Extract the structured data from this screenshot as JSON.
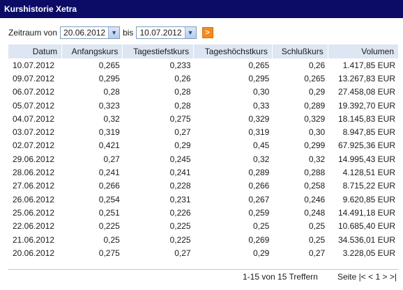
{
  "header": {
    "title": "Kurshistorie Xetra"
  },
  "filter": {
    "from_label": "Zeitraum von",
    "from_value": "20.06.2012",
    "to_label": "bis",
    "to_value": "10.07.2012",
    "go_label": ">"
  },
  "table": {
    "columns": [
      "Datum",
      "Anfangskurs",
      "Tagestiefstkurs",
      "Tageshöchstkurs",
      "Schlußkurs",
      "Volumen"
    ],
    "rows": [
      [
        "10.07.2012",
        "0,265",
        "0,233",
        "0,265",
        "0,26",
        "1.417,85 EUR"
      ],
      [
        "09.07.2012",
        "0,295",
        "0,26",
        "0,295",
        "0,265",
        "13.267,83 EUR"
      ],
      [
        "06.07.2012",
        "0,28",
        "0,28",
        "0,30",
        "0,29",
        "27.458,08 EUR"
      ],
      [
        "05.07.2012",
        "0,323",
        "0,28",
        "0,33",
        "0,289",
        "19.392,70 EUR"
      ],
      [
        "04.07.2012",
        "0,32",
        "0,275",
        "0,329",
        "0,329",
        "18.145,83 EUR"
      ],
      [
        "03.07.2012",
        "0,319",
        "0,27",
        "0,319",
        "0,30",
        "8.947,85 EUR"
      ],
      [
        "02.07.2012",
        "0,421",
        "0,29",
        "0,45",
        "0,299",
        "67.925,36 EUR"
      ],
      [
        "29.06.2012",
        "0,27",
        "0,245",
        "0,32",
        "0,32",
        "14.995,43 EUR"
      ],
      [
        "28.06.2012",
        "0,241",
        "0,241",
        "0,289",
        "0,288",
        "4.128,51 EUR"
      ],
      [
        "27.06.2012",
        "0,266",
        "0,228",
        "0,266",
        "0,258",
        "8.715,22 EUR"
      ],
      [
        "26.06.2012",
        "0,254",
        "0,231",
        "0,267",
        "0,246",
        "9.620,85 EUR"
      ],
      [
        "25.06.2012",
        "0,251",
        "0,226",
        "0,259",
        "0,248",
        "14.491,18 EUR"
      ],
      [
        "22.06.2012",
        "0,225",
        "0,225",
        "0,25",
        "0,25",
        "10.685,40 EUR"
      ],
      [
        "21.06.2012",
        "0,25",
        "0,225",
        "0,269",
        "0,25",
        "34.536,01 EUR"
      ],
      [
        "20.06.2012",
        "0,275",
        "0,27",
        "0,29",
        "0,27",
        "3.228,05 EUR"
      ]
    ]
  },
  "footer": {
    "count_text": "1-15 von 15 Treffern",
    "pager_label": "Seite",
    "pager_first": "|<",
    "pager_prev": "<",
    "pager_current": "1",
    "pager_next": ">",
    "pager_last": ">|"
  },
  "colors": {
    "header_bg": "#0c0c66",
    "table_header_bg": "#dde6f2",
    "go_button": "#f58a1f"
  }
}
